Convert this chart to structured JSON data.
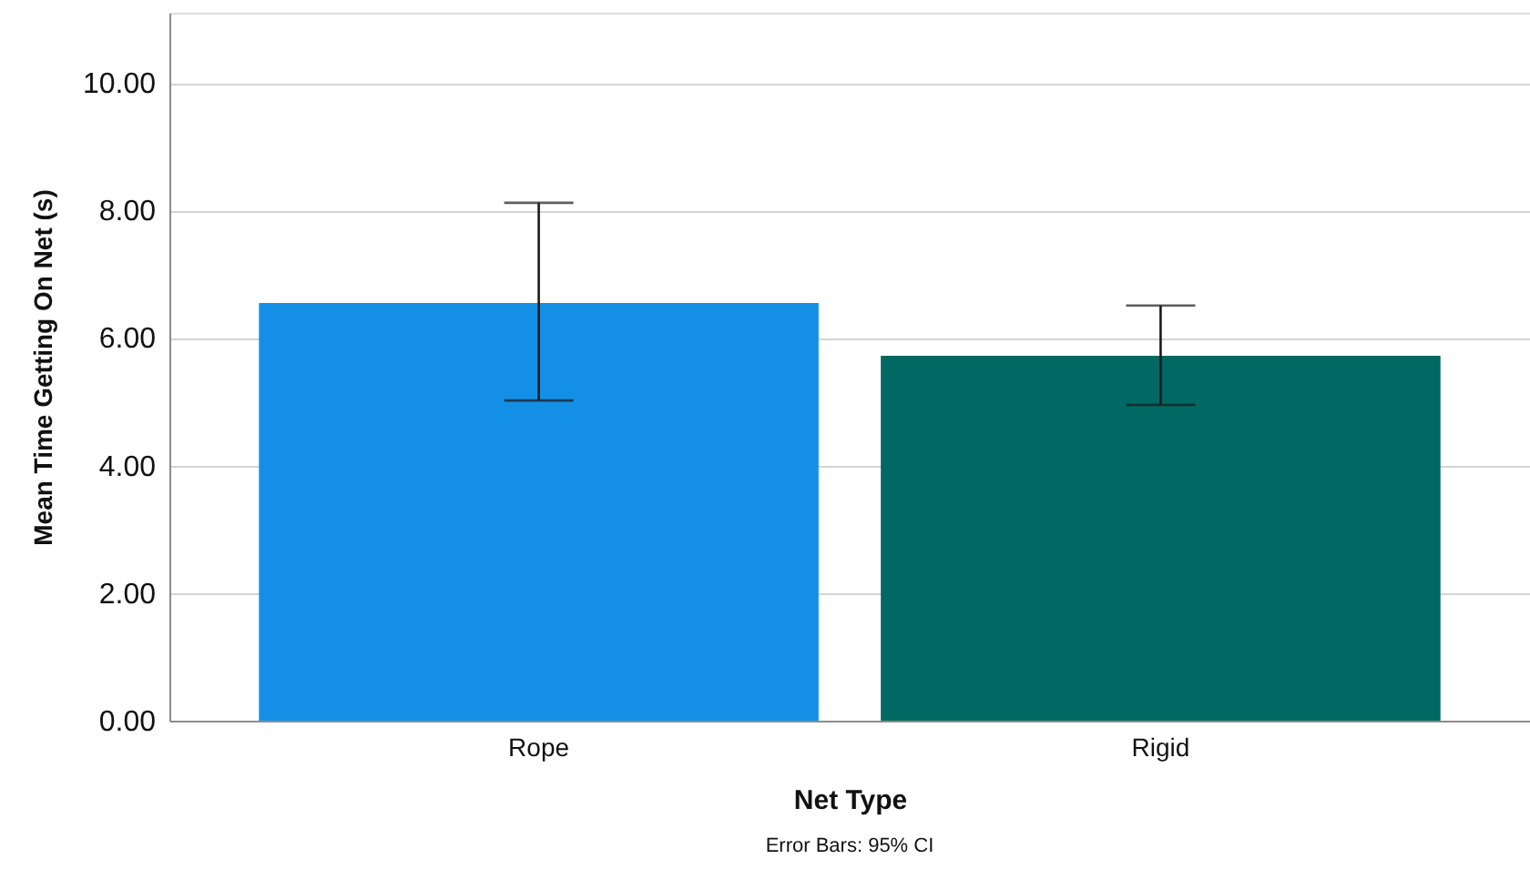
{
  "chart_data": {
    "type": "bar",
    "xlabel": "Net Type",
    "ylabel": "Mean Time Getting On Net (s)",
    "categories": [
      "Rope",
      "Rigid"
    ],
    "values": [
      6.55,
      5.72
    ],
    "colors": [
      "#1390e6",
      "#016864"
    ],
    "errors": [
      [
        5.02,
        8.12
      ],
      [
        4.95,
        6.51
      ]
    ],
    "ylim": [
      0,
      11.1
    ],
    "yticks": [
      {
        "value": 0,
        "label": "0.00"
      },
      {
        "value": 2,
        "label": "2.00"
      },
      {
        "value": 4,
        "label": "4.00"
      },
      {
        "value": 6,
        "label": "6.00"
      },
      {
        "value": 8,
        "label": "8.00"
      },
      {
        "value": 10,
        "label": "10.00"
      }
    ],
    "grid": "y",
    "annotations": [
      "Error Bars: 95% CI"
    ]
  }
}
